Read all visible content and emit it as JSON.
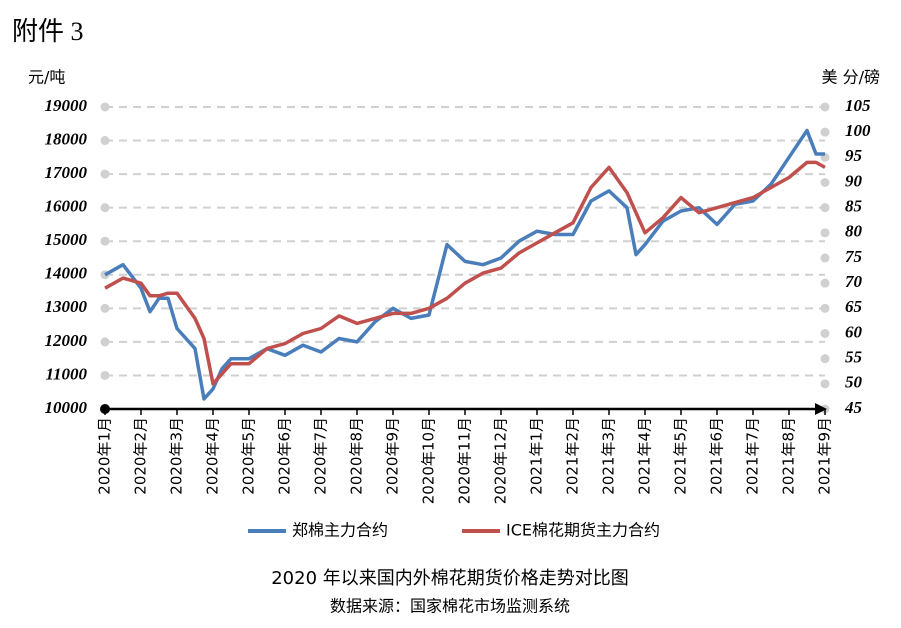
{
  "attachment_label": "附件 3",
  "chart_data": {
    "type": "line",
    "title": "2020 年以来国内外棉花期货价格走势对比图",
    "subtitle": "数据来源：国家棉花市场监测系统",
    "ylabel": "元/吨",
    "y2label": "美 分/磅",
    "xlim": [
      0,
      20
    ],
    "xticks": [
      {
        "value": 0,
        "label": "2020年1月"
      },
      {
        "value": 1,
        "label": "2020年2月"
      },
      {
        "value": 2,
        "label": "2020年3月"
      },
      {
        "value": 3,
        "label": "2020年4月"
      },
      {
        "value": 4,
        "label": "2020年5月"
      },
      {
        "value": 5,
        "label": "2020年6月"
      },
      {
        "value": 6,
        "label": "2020年7月"
      },
      {
        "value": 7,
        "label": "2020年8月"
      },
      {
        "value": 8,
        "label": "2020年9月"
      },
      {
        "value": 9,
        "label": "2020年10月"
      },
      {
        "value": 10,
        "label": "2020年11月"
      },
      {
        "value": 11,
        "label": "2020年12月"
      },
      {
        "value": 12,
        "label": "2021年1月"
      },
      {
        "value": 13,
        "label": "2021年2月"
      },
      {
        "value": 14,
        "label": "2021年3月"
      },
      {
        "value": 15,
        "label": "2021年4月"
      },
      {
        "value": 16,
        "label": "2021年5月"
      },
      {
        "value": 17,
        "label": "2021年6月"
      },
      {
        "value": 18,
        "label": "2021年7月"
      },
      {
        "value": 19,
        "label": "2021年8月"
      },
      {
        "value": 20,
        "label": "2021年9月"
      }
    ],
    "ylim": [
      10000,
      19000
    ],
    "yticks": [
      10000,
      11000,
      12000,
      13000,
      14000,
      15000,
      16000,
      17000,
      18000,
      19000
    ],
    "y2lim": [
      45,
      105
    ],
    "y2ticks": [
      45,
      50,
      55,
      60,
      65,
      70,
      75,
      80,
      85,
      90,
      95,
      100,
      105
    ],
    "grid": true,
    "legend": "bottom",
    "x": [
      0,
      0.5,
      1,
      1.25,
      1.5,
      1.75,
      2,
      2.5,
      2.75,
      3,
      3.25,
      3.5,
      4,
      4.5,
      5,
      5.5,
      6,
      6.5,
      7,
      7.5,
      8,
      8.5,
      9,
      9.5,
      10,
      10.5,
      11,
      11.5,
      12,
      12.5,
      13,
      13.5,
      14,
      14.5,
      14.75,
      15,
      15.5,
      16,
      16.5,
      17,
      17.5,
      18,
      18.5,
      19,
      19.5,
      19.75,
      20
    ],
    "series": [
      {
        "name": "郑棉主力合约",
        "color": "#4a7ebb",
        "axis": "y",
        "values": [
          14000,
          14300,
          13600,
          12900,
          13300,
          13300,
          12400,
          11800,
          10300,
          10600,
          11200,
          11500,
          11500,
          11800,
          11600,
          11900,
          11700,
          12100,
          12000,
          12600,
          13000,
          12700,
          12800,
          14900,
          14400,
          14300,
          14500,
          15000,
          15300,
          15200,
          15200,
          16200,
          16500,
          16000,
          14600,
          14900,
          15600,
          15900,
          16000,
          15500,
          16100,
          16200,
          16700,
          17500,
          18300,
          17600,
          17600
        ]
      },
      {
        "name": "ICE棉花期货主力合约",
        "color": "#c0504d",
        "axis": "y2",
        "values": [
          69,
          71,
          70,
          67.5,
          67.5,
          68,
          68,
          63,
          59,
          50,
          52,
          54,
          54,
          57,
          58,
          60,
          61,
          63.5,
          62,
          63,
          64,
          64,
          65,
          67,
          70,
          72,
          73,
          76,
          78,
          80,
          82,
          89,
          93,
          88,
          84,
          80,
          83,
          87,
          84,
          85,
          86,
          87,
          89,
          91,
          94,
          94,
          93
        ]
      }
    ]
  }
}
